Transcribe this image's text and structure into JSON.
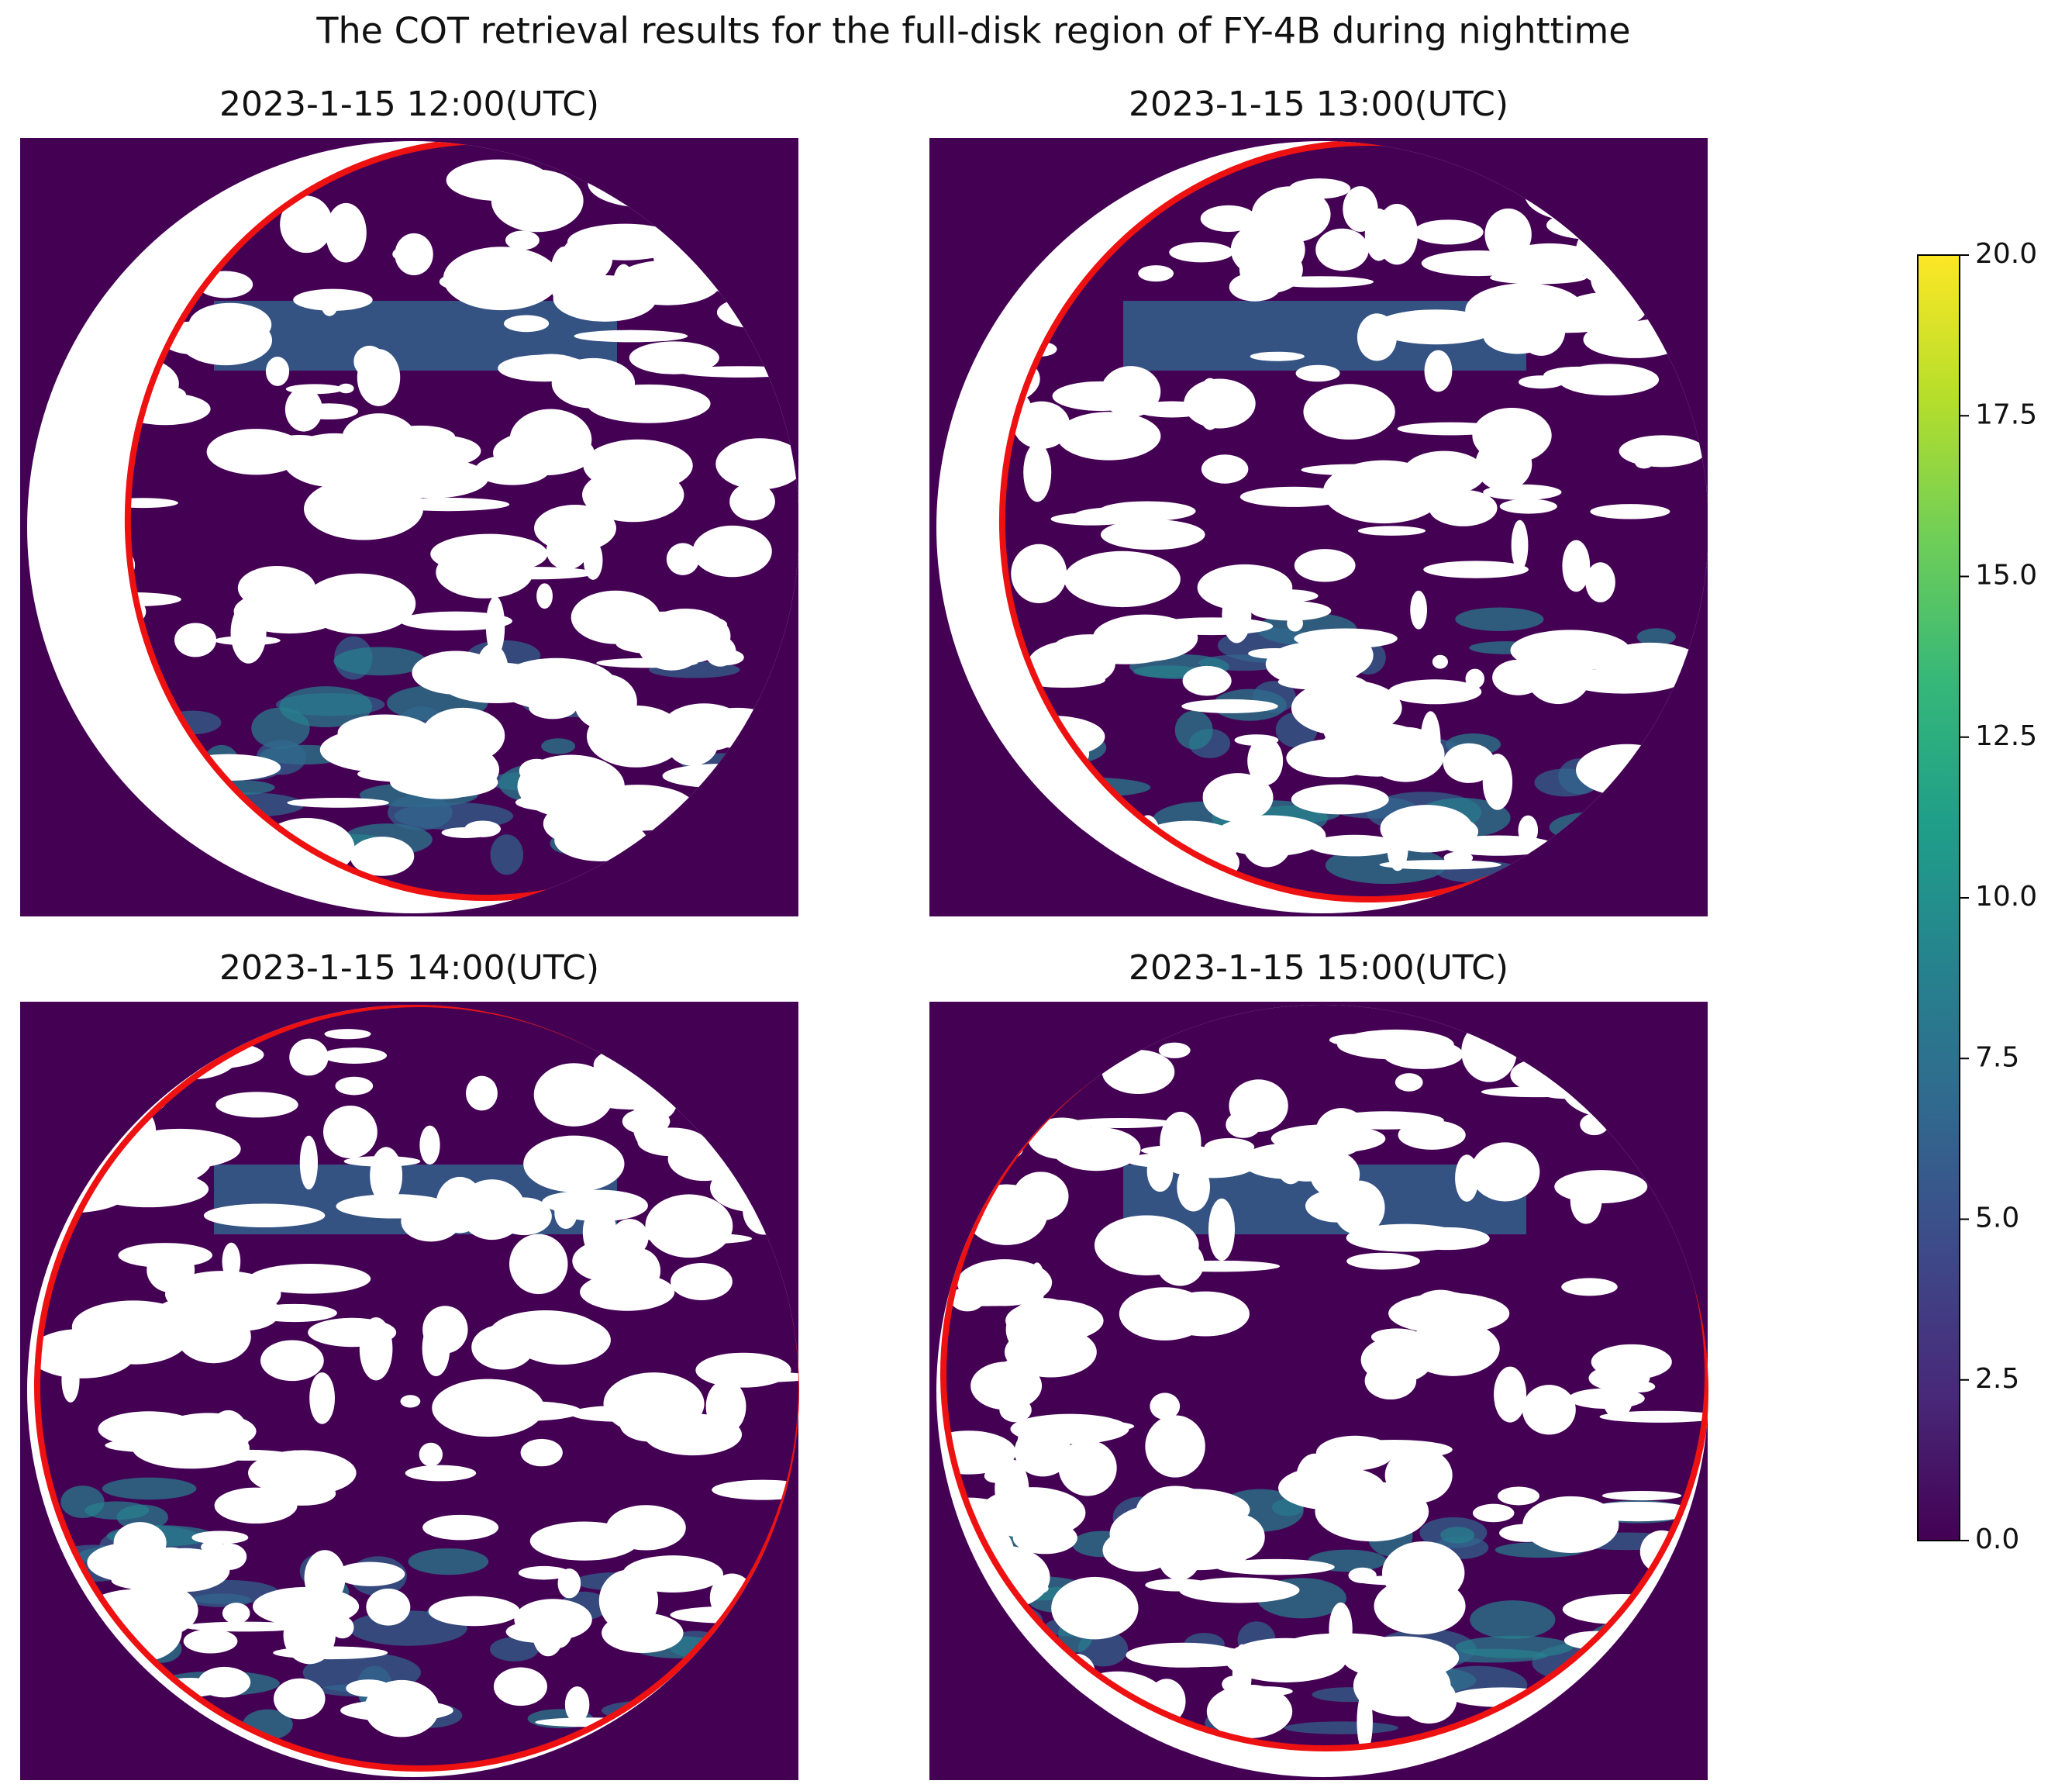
{
  "chart_data": {
    "type": "image",
    "title": "The COT retrieval results for the full-disk region of FY-4B during nighttime",
    "panels": [
      {
        "title": "2023-1-15 12:00(UTC)"
      },
      {
        "title": "2023-1-15 13:00(UTC)"
      },
      {
        "title": "2023-1-15 14:00(UTC)"
      },
      {
        "title": "2023-1-15 15:00(UTC)"
      }
    ],
    "colormap": "viridis",
    "clim": [
      0,
      20
    ],
    "cticks": [
      {
        "value": 0,
        "label": "0.0"
      },
      2.5,
      {
        "value": 5,
        "label": "5.0"
      },
      7.5,
      {
        "value": 10,
        "label": "10.0"
      },
      12.5,
      {
        "value": 15,
        "label": "15.0"
      },
      17.5,
      {
        "value": 20,
        "label": "20.0"
      }
    ]
  }
}
